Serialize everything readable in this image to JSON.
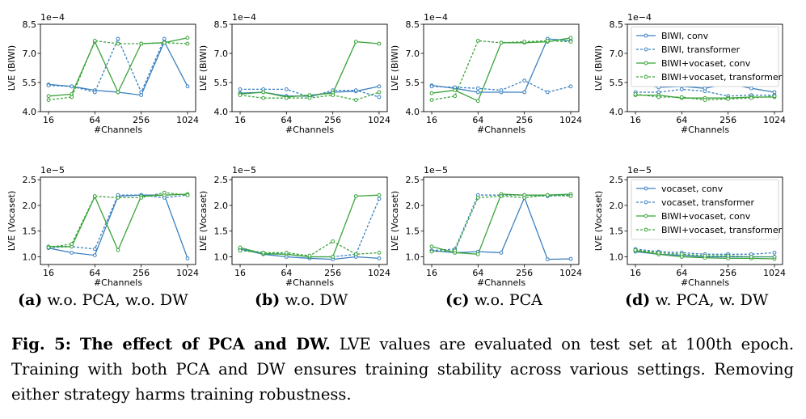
{
  "subcaptions": [
    {
      "label": "(a)",
      "text": "w.o. PCA, w.o. DW"
    },
    {
      "label": "(b)",
      "text": "w.o. DW"
    },
    {
      "label": "(c)",
      "text": "w.o. PCA"
    },
    {
      "label": "(d)",
      "text": "w. PCA, w. DW"
    }
  ],
  "caption": {
    "label": "Fig. 5:",
    "title": "The effect of PCA and DW.",
    "body": "LVE values are evaluated on test set at 100th epoch. Training with both PCA and DW ensures training stability across various settings. Removing either strategy harms training robustness."
  },
  "colors": {
    "blue": "#3b80c0",
    "green": "#3aa33a"
  },
  "chart_data": [
    {
      "type": "line",
      "panel": "a",
      "row": "BIWI",
      "ylabel": "LVE (BIWI)",
      "xlabel": "#Channels",
      "scale_label": "1e−4",
      "ylim": [
        4.0,
        8.5
      ],
      "yticks": [
        "4.0",
        "5.5",
        "7.0",
        "8.5"
      ],
      "ytick_values": [
        4.0,
        5.5,
        7.0,
        8.5
      ],
      "xscale": "log2",
      "xticks": [
        "16",
        "64",
        "256",
        "1024"
      ],
      "xtick_values": [
        16,
        64,
        256,
        1024
      ],
      "x": [
        16,
        32,
        64,
        128,
        256,
        512,
        1024
      ],
      "series": [
        {
          "name": "BIWI, conv",
          "color": "blue",
          "dashed": false,
          "values": [
            5.4,
            5.3,
            5.1,
            5.0,
            4.85,
            7.6,
            5.3
          ]
        },
        {
          "name": "BIWI, transformer",
          "color": "blue",
          "dashed": true,
          "values": [
            5.35,
            5.3,
            5.0,
            7.75,
            5.0,
            7.75,
            null
          ]
        },
        {
          "name": "BIWI+vocaset, conv",
          "color": "green",
          "dashed": false,
          "values": [
            4.8,
            4.9,
            7.6,
            5.0,
            7.5,
            7.55,
            7.8
          ]
        },
        {
          "name": "BIWI+vocaset, transformer",
          "color": "green",
          "dashed": true,
          "values": [
            4.6,
            4.75,
            7.65,
            7.5,
            7.5,
            7.55,
            7.5
          ]
        }
      ]
    },
    {
      "type": "line",
      "panel": "b",
      "row": "BIWI",
      "ylabel": "LVE (BIWI)",
      "xlabel": "#Channels",
      "scale_label": "1e−4",
      "ylim": [
        4.0,
        8.5
      ],
      "yticks": [
        "4.0",
        "5.5",
        "7.0",
        "8.5"
      ],
      "ytick_values": [
        4.0,
        5.5,
        7.0,
        8.5
      ],
      "xscale": "log2",
      "xticks": [
        "16",
        "64",
        "256",
        "1024"
      ],
      "xtick_values": [
        16,
        64,
        256,
        1024
      ],
      "x": [
        16,
        32,
        64,
        128,
        256,
        512,
        1024
      ],
      "series": [
        {
          "name": "BIWI, conv",
          "color": "blue",
          "dashed": false,
          "values": [
            4.95,
            5.0,
            4.8,
            4.8,
            5.0,
            5.05,
            5.3
          ]
        },
        {
          "name": "BIWI, transformer",
          "color": "blue",
          "dashed": true,
          "values": [
            5.15,
            5.15,
            5.15,
            4.75,
            5.1,
            5.1,
            4.75
          ]
        },
        {
          "name": "BIWI+vocaset, conv",
          "color": "green",
          "dashed": false,
          "values": [
            4.9,
            5.0,
            4.75,
            4.85,
            4.95,
            7.6,
            7.5
          ]
        },
        {
          "name": "BIWI+vocaset, transformer",
          "color": "green",
          "dashed": true,
          "values": [
            4.85,
            4.7,
            4.7,
            4.7,
            4.85,
            4.6,
            5.0
          ]
        }
      ]
    },
    {
      "type": "line",
      "panel": "c",
      "row": "BIWI",
      "ylabel": "LVE (BIWI)",
      "xlabel": "#Channels",
      "scale_label": "1e−4",
      "ylim": [
        4.0,
        8.5
      ],
      "yticks": [
        "4.0",
        "5.5",
        "7.0",
        "8.5"
      ],
      "ytick_values": [
        4.0,
        5.5,
        7.0,
        8.5
      ],
      "xscale": "log2",
      "xticks": [
        "16",
        "64",
        "256",
        "1024"
      ],
      "xtick_values": [
        16,
        64,
        256,
        1024
      ],
      "x": [
        16,
        32,
        64,
        128,
        256,
        512,
        1024
      ],
      "series": [
        {
          "name": "BIWI, conv",
          "color": "blue",
          "dashed": false,
          "values": [
            5.35,
            5.2,
            5.0,
            5.0,
            5.0,
            7.75,
            7.65
          ]
        },
        {
          "name": "BIWI, transformer",
          "color": "blue",
          "dashed": true,
          "values": [
            5.3,
            5.25,
            5.2,
            5.1,
            5.6,
            5.0,
            5.3
          ]
        },
        {
          "name": "BIWI+vocaset, conv",
          "color": "green",
          "dashed": false,
          "values": [
            4.95,
            5.1,
            4.55,
            7.55,
            7.55,
            7.6,
            7.8
          ]
        },
        {
          "name": "BIWI+vocaset, transformer",
          "color": "green",
          "dashed": true,
          "values": [
            4.6,
            4.8,
            7.65,
            7.55,
            7.6,
            7.65,
            7.6
          ]
        }
      ]
    },
    {
      "type": "line",
      "panel": "d",
      "row": "BIWI",
      "ylabel": "LVE (BIWI)",
      "xlabel": "#Channels",
      "scale_label": "1e−4",
      "ylim": [
        4.0,
        8.5
      ],
      "yticks": [
        "4.0",
        "5.5",
        "7.0",
        "8.5"
      ],
      "ytick_values": [
        4.0,
        5.5,
        7.0,
        8.5
      ],
      "xscale": "log2",
      "xticks": [
        "16",
        "64",
        "256",
        "1024"
      ],
      "xtick_values": [
        16,
        64,
        256,
        1024
      ],
      "x": [
        16,
        32,
        64,
        128,
        256,
        512,
        1024
      ],
      "legend": "upper right",
      "series": [
        {
          "name": "BIWI, conv",
          "color": "blue",
          "dashed": false,
          "values": [
            5.5,
            5.25,
            5.3,
            5.2,
            5.45,
            5.2,
            5.0
          ]
        },
        {
          "name": "BIWI, transformer",
          "color": "blue",
          "dashed": true,
          "values": [
            5.0,
            5.0,
            5.15,
            5.05,
            4.8,
            4.85,
            4.85
          ]
        },
        {
          "name": "BIWI+vocaset, conv",
          "color": "green",
          "dashed": false,
          "values": [
            4.85,
            4.85,
            4.7,
            4.7,
            4.7,
            4.75,
            4.75
          ]
        },
        {
          "name": "BIWI+vocaset, transformer",
          "color": "green",
          "dashed": true,
          "values": [
            4.9,
            4.75,
            4.75,
            4.6,
            4.65,
            4.7,
            4.8
          ]
        }
      ]
    },
    {
      "type": "line",
      "panel": "a",
      "row": "Vocaset",
      "ylabel": "LVE (Vocaset)",
      "xlabel": "#Channels",
      "scale_label": "1e−5",
      "ylim": [
        0.85,
        2.55
      ],
      "yticks": [
        "1.0",
        "1.5",
        "2.0",
        "2.5"
      ],
      "ytick_values": [
        1.0,
        1.5,
        2.0,
        2.5
      ],
      "xscale": "log2",
      "xticks": [
        "16",
        "64",
        "256",
        "1024"
      ],
      "xtick_values": [
        16,
        64,
        256,
        1024
      ],
      "x": [
        16,
        32,
        64,
        128,
        256,
        512,
        1024
      ],
      "series": [
        {
          "name": "vocaset, conv",
          "color": "blue",
          "dashed": false,
          "values": [
            1.17,
            1.08,
            1.03,
            2.18,
            2.2,
            2.2,
            0.97
          ]
        },
        {
          "name": "vocaset, transformer",
          "color": "blue",
          "dashed": true,
          "values": [
            1.18,
            1.2,
            1.15,
            2.2,
            2.2,
            2.15,
            2.2
          ]
        },
        {
          "name": "BIWI+vocaset, conv",
          "color": "green",
          "dashed": false,
          "values": [
            1.2,
            1.2,
            2.17,
            1.13,
            2.18,
            2.2,
            2.22
          ]
        },
        {
          "name": "BIWI+vocaset, transformer",
          "color": "green",
          "dashed": true,
          "values": [
            1.18,
            1.25,
            2.18,
            2.15,
            2.15,
            2.25,
            2.2
          ]
        }
      ]
    },
    {
      "type": "line",
      "panel": "b",
      "row": "Vocaset",
      "ylabel": "LVE (Vocaset)",
      "xlabel": "#Channels",
      "scale_label": "1e−5",
      "ylim": [
        0.85,
        2.55
      ],
      "yticks": [
        "1.0",
        "1.5",
        "2.0",
        "2.5"
      ],
      "ytick_values": [
        1.0,
        1.5,
        2.0,
        2.5
      ],
      "xscale": "log2",
      "xticks": [
        "16",
        "64",
        "256",
        "1024"
      ],
      "xtick_values": [
        16,
        64,
        256,
        1024
      ],
      "x": [
        16,
        32,
        64,
        128,
        256,
        512,
        1024
      ],
      "series": [
        {
          "name": "vocaset, conv",
          "color": "blue",
          "dashed": false,
          "values": [
            1.15,
            1.05,
            1.0,
            0.97,
            0.95,
            1.0,
            0.97
          ]
        },
        {
          "name": "vocaset, transformer",
          "color": "blue",
          "dashed": true,
          "values": [
            1.15,
            1.08,
            1.05,
            1.0,
            1.0,
            1.05,
            2.13
          ]
        },
        {
          "name": "BIWI+vocaset, conv",
          "color": "green",
          "dashed": false,
          "values": [
            1.18,
            1.06,
            1.05,
            1.0,
            1.0,
            2.18,
            2.2
          ]
        },
        {
          "name": "BIWI+vocaset, transformer",
          "color": "green",
          "dashed": true,
          "values": [
            1.12,
            1.08,
            1.08,
            1.02,
            1.3,
            1.05,
            1.08
          ]
        }
      ]
    },
    {
      "type": "line",
      "panel": "c",
      "row": "Vocaset",
      "ylabel": "LVE (Vocaset)",
      "xlabel": "#Channels",
      "scale_label": "1e−5",
      "ylim": [
        0.85,
        2.55
      ],
      "yticks": [
        "1.0",
        "1.5",
        "2.0",
        "2.5"
      ],
      "ytick_values": [
        1.0,
        1.5,
        2.0,
        2.5
      ],
      "xscale": "log2",
      "xticks": [
        "16",
        "64",
        "256",
        "1024"
      ],
      "xtick_values": [
        16,
        64,
        256,
        1024
      ],
      "x": [
        16,
        32,
        64,
        128,
        256,
        512,
        1024
      ],
      "series": [
        {
          "name": "vocaset, conv",
          "color": "blue",
          "dashed": false,
          "values": [
            1.12,
            1.08,
            1.1,
            1.08,
            2.15,
            0.95,
            0.96
          ]
        },
        {
          "name": "vocaset, transformer",
          "color": "blue",
          "dashed": true,
          "values": [
            1.12,
            1.15,
            2.2,
            2.2,
            2.2,
            2.18,
            2.2
          ]
        },
        {
          "name": "BIWI+vocaset, conv",
          "color": "green",
          "dashed": false,
          "values": [
            1.2,
            1.08,
            1.05,
            2.22,
            2.2,
            2.2,
            2.22
          ]
        },
        {
          "name": "BIWI+vocaset, transformer",
          "color": "green",
          "dashed": true,
          "values": [
            1.1,
            1.12,
            2.15,
            2.18,
            2.15,
            2.2,
            2.18
          ]
        }
      ]
    },
    {
      "type": "line",
      "panel": "d",
      "row": "Vocaset",
      "ylabel": "LVE (Vocaset)",
      "xlabel": "#Channels",
      "scale_label": "1e−5",
      "ylim": [
        0.85,
        2.55
      ],
      "yticks": [
        "1.0",
        "1.5",
        "2.0",
        "2.5"
      ],
      "ytick_values": [
        1.0,
        1.5,
        2.0,
        2.5
      ],
      "xscale": "log2",
      "xticks": [
        "16",
        "64",
        "256",
        "1024"
      ],
      "xtick_values": [
        16,
        64,
        256,
        1024
      ],
      "x": [
        16,
        32,
        64,
        128,
        256,
        512,
        1024
      ],
      "legend": "upper right",
      "series": [
        {
          "name": "vocaset, conv",
          "color": "blue",
          "dashed": false,
          "values": [
            1.1,
            1.05,
            1.03,
            1.0,
            1.0,
            1.0,
            1.0
          ]
        },
        {
          "name": "vocaset, transformer",
          "color": "blue",
          "dashed": true,
          "values": [
            1.15,
            1.1,
            1.08,
            1.05,
            1.05,
            1.05,
            1.08
          ]
        },
        {
          "name": "BIWI+vocaset, conv",
          "color": "green",
          "dashed": false,
          "values": [
            1.12,
            1.05,
            1.0,
            0.98,
            0.97,
            0.97,
            0.96
          ]
        },
        {
          "name": "BIWI+vocaset, transformer",
          "color": "green",
          "dashed": true,
          "values": [
            1.13,
            1.08,
            1.05,
            1.02,
            1.02,
            1.0,
            1.0
          ]
        }
      ]
    }
  ]
}
